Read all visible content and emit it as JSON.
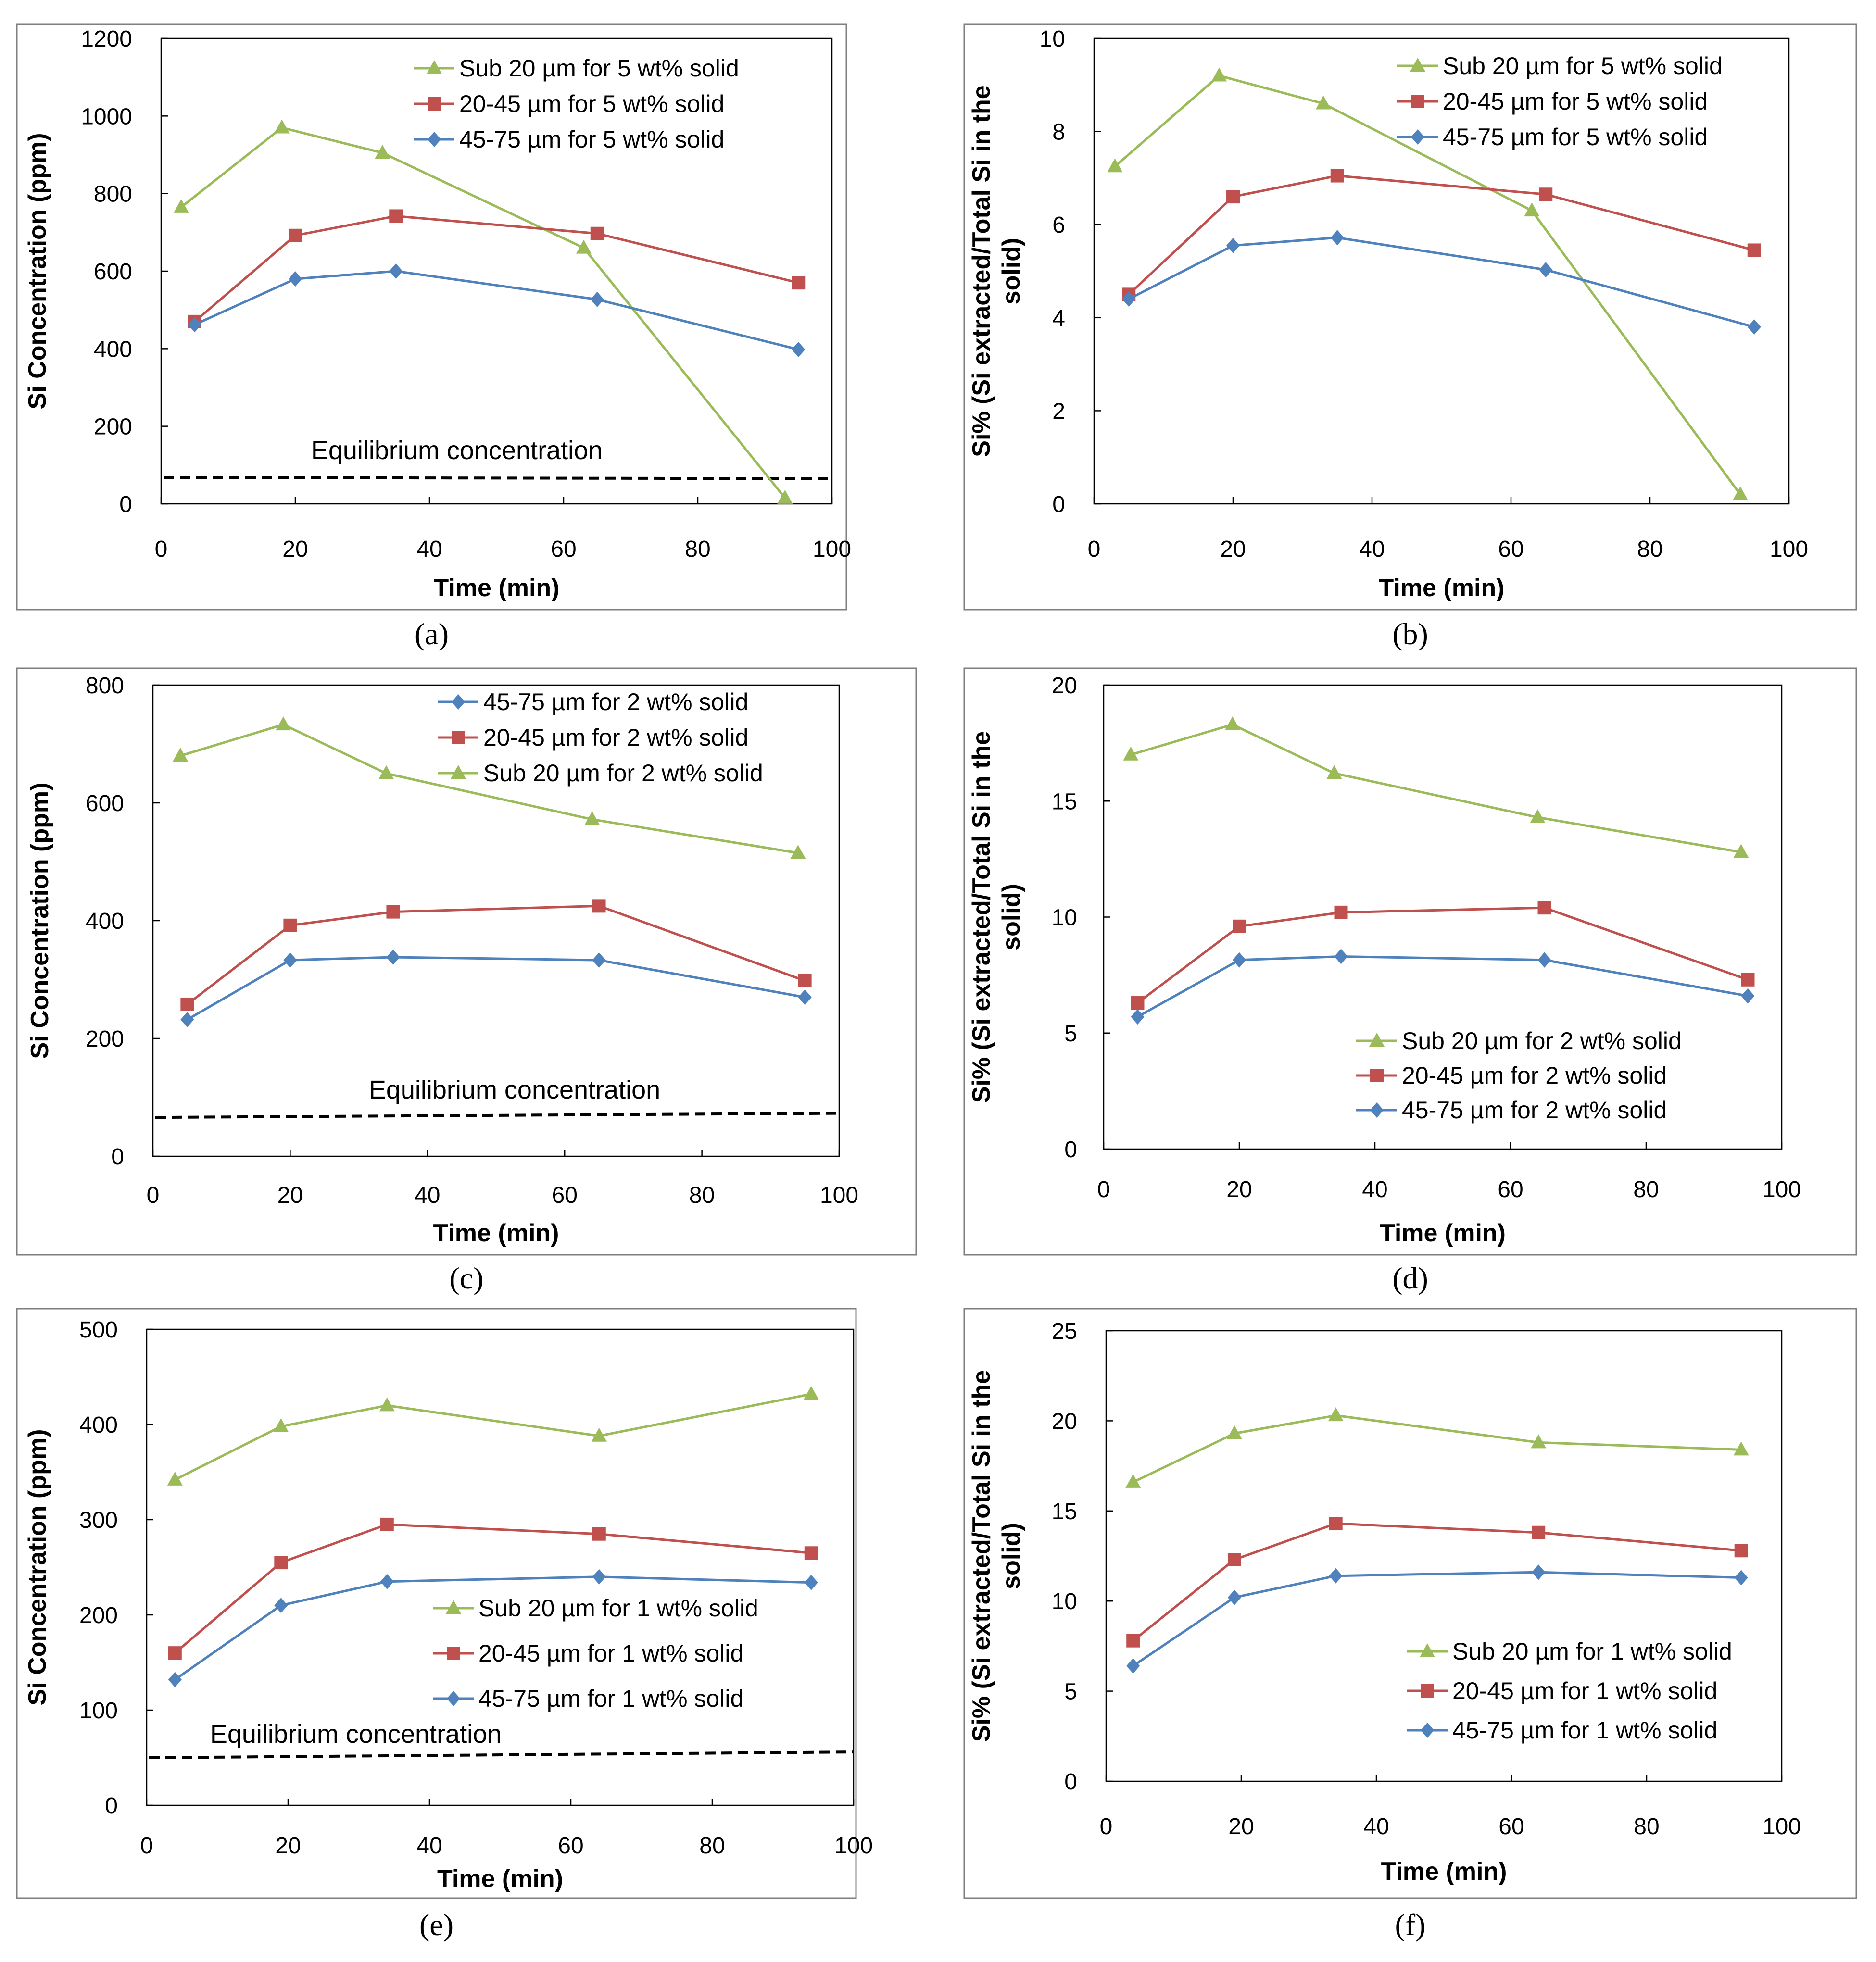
{
  "colors": {
    "green": "#9bbb59",
    "red": "#c0504d",
    "blue": "#4f81bd",
    "frame": "#7f7f7f",
    "equilibrium": "#000000"
  },
  "chart_data": [
    {
      "panel": "(a)",
      "type": "line",
      "xlabel": "Time (min)",
      "ylabel": "Si Concentration (ppm)",
      "xlim": [
        0,
        100
      ],
      "ylim": [
        0,
        1200
      ],
      "xticks": [
        0,
        20,
        40,
        60,
        80,
        100
      ],
      "yticks": [
        0,
        200,
        400,
        600,
        800,
        1000,
        1200
      ],
      "legend_position": "top-right",
      "series": [
        {
          "name": "Sub 20 µm for 5 wt% solid",
          "color": "green",
          "marker": "triangle",
          "x": [
            3,
            18,
            33,
            63,
            93
          ],
          "y": [
            765,
            970,
            905,
            660,
            15
          ]
        },
        {
          "name": "20-45 µm for 5 wt% solid",
          "color": "red",
          "marker": "square",
          "x": [
            5,
            20,
            35,
            65,
            95
          ],
          "y": [
            470,
            692,
            742,
            697,
            570
          ]
        },
        {
          "name": "45-75 µm for 5 wt% solid",
          "color": "blue",
          "marker": "diamond",
          "x": [
            5,
            20,
            35,
            65,
            95
          ],
          "y": [
            462,
            580,
            600,
            527,
            398
          ]
        }
      ],
      "annotation": {
        "text": "Equilibrium concentration",
        "y_start": 68,
        "y_end": 65
      }
    },
    {
      "panel": "(b)",
      "type": "line",
      "xlabel": "Time  (min)",
      "ylabel_lines": [
        "Si% (Si extracted/Total Si in the",
        "solid)"
      ],
      "xlim": [
        0,
        100
      ],
      "ylim": [
        0,
        10
      ],
      "xticks": [
        0,
        20,
        40,
        60,
        80,
        100
      ],
      "yticks": [
        0,
        2,
        4,
        6,
        8,
        10
      ],
      "legend_position": "top-right",
      "series": [
        {
          "name": "Sub 20 µm for 5 wt% solid",
          "color": "green",
          "marker": "triangle",
          "x": [
            3,
            18,
            33,
            63,
            93
          ],
          "y": [
            7.25,
            9.2,
            8.6,
            6.3,
            0.2
          ]
        },
        {
          "name": "20-45 µm for 5 wt% solid",
          "color": "red",
          "marker": "square",
          "x": [
            5,
            20,
            35,
            65,
            95
          ],
          "y": [
            4.5,
            6.6,
            7.05,
            6.65,
            5.45
          ]
        },
        {
          "name": "45-75 µm for 5 wt% solid",
          "color": "blue",
          "marker": "diamond",
          "x": [
            5,
            20,
            35,
            65,
            95
          ],
          "y": [
            4.4,
            5.55,
            5.72,
            5.03,
            3.8
          ]
        }
      ]
    },
    {
      "panel": "(c)",
      "type": "line",
      "xlabel": "Time (min)",
      "ylabel": "Si Concentration (ppm)",
      "xlim": [
        0,
        100
      ],
      "ylim": [
        0,
        800
      ],
      "xticks": [
        0,
        20,
        40,
        60,
        80,
        100
      ],
      "yticks": [
        0,
        200,
        400,
        600,
        800
      ],
      "legend_position": "top-right",
      "series": [
        {
          "name": "45-75 µm for 2 wt% solid",
          "color": "blue",
          "marker": "diamond",
          "x": [
            5,
            20,
            35,
            65,
            95
          ],
          "y": [
            232,
            333,
            338,
            333,
            270
          ]
        },
        {
          "name": "20-45 µm for 2 wt% solid",
          "color": "red",
          "marker": "square",
          "x": [
            5,
            20,
            35,
            65,
            95
          ],
          "y": [
            258,
            392,
            415,
            425,
            298
          ]
        },
        {
          "name": "Sub 20 µm for 2 wt% solid",
          "color": "green",
          "marker": "triangle",
          "x": [
            4,
            19,
            34,
            64,
            94
          ],
          "y": [
            680,
            733,
            650,
            572,
            515
          ]
        }
      ],
      "annotation": {
        "text": "Equilibrium concentration",
        "y_start": 66,
        "y_end": 73
      }
    },
    {
      "panel": "(d)",
      "type": "line",
      "xlabel": "Time (min)",
      "ylabel_lines": [
        "Si% (Si extracted/Total Si in the",
        "solid)"
      ],
      "xlim": [
        0,
        100
      ],
      "ylim": [
        0,
        20
      ],
      "xticks": [
        0,
        20,
        40,
        60,
        80,
        100
      ],
      "yticks": [
        0,
        5,
        10,
        15,
        20
      ],
      "legend_position": "bottom-right",
      "series": [
        {
          "name": "Sub 20 µm for 2 wt% solid",
          "color": "green",
          "marker": "triangle",
          "x": [
            4,
            19,
            34,
            64,
            94
          ],
          "y": [
            17,
            18.3,
            16.2,
            14.3,
            12.8
          ]
        },
        {
          "name": "20-45 µm for 2 wt% solid",
          "color": "red",
          "marker": "square",
          "x": [
            5,
            20,
            35,
            65,
            95
          ],
          "y": [
            6.3,
            9.6,
            10.2,
            10.4,
            7.3
          ]
        },
        {
          "name": "45-75 µm for 2 wt% solid",
          "color": "blue",
          "marker": "diamond",
          "x": [
            5,
            20,
            35,
            65,
            95
          ],
          "y": [
            5.7,
            8.15,
            8.3,
            8.15,
            6.6
          ]
        }
      ]
    },
    {
      "panel": "(e)",
      "type": "line",
      "xlabel": "Time (min)",
      "ylabel": "Si Concentration (ppm)",
      "xlim": [
        0,
        100
      ],
      "ylim": [
        0,
        500
      ],
      "xticks": [
        0,
        20,
        40,
        60,
        80,
        100
      ],
      "yticks": [
        0,
        100,
        200,
        300,
        400,
        500
      ],
      "legend_position": "bottom-right",
      "series": [
        {
          "name": "Sub 20 µm for 1 wt% solid",
          "color": "green",
          "marker": "triangle",
          "x": [
            4,
            19,
            34,
            64,
            94
          ],
          "y": [
            342,
            398,
            420,
            388,
            432
          ]
        },
        {
          "name": "20-45 µm for 1 wt% solid",
          "color": "red",
          "marker": "square",
          "x": [
            4,
            19,
            34,
            64,
            94
          ],
          "y": [
            160,
            255,
            295,
            285,
            265
          ]
        },
        {
          "name": "45-75 µm for 1 wt% solid",
          "color": "blue",
          "marker": "diamond",
          "x": [
            4,
            19,
            34,
            64,
            94
          ],
          "y": [
            132,
            210,
            235,
            240,
            234
          ]
        }
      ],
      "annotation": {
        "text": "Equilibrium concentration",
        "y_start": 50,
        "y_end": 56
      }
    },
    {
      "panel": "(f)",
      "type": "line",
      "xlabel": "Time (min)",
      "ylabel_lines": [
        "Si% (Si extracted/Total Si in the",
        "solid)"
      ],
      "xlim": [
        0,
        100
      ],
      "ylim": [
        0,
        25
      ],
      "xticks": [
        0,
        20,
        40,
        60,
        80,
        100
      ],
      "yticks": [
        0,
        5,
        10,
        15,
        20,
        25
      ],
      "legend_position": "bottom-right",
      "series": [
        {
          "name": "Sub 20 µm for 1 wt% solid",
          "color": "green",
          "marker": "triangle",
          "x": [
            4,
            19,
            34,
            64,
            94
          ],
          "y": [
            16.6,
            19.3,
            20.3,
            18.8,
            18.4
          ]
        },
        {
          "name": "20-45 µm for 1 wt% solid",
          "color": "red",
          "marker": "square",
          "x": [
            4,
            19,
            34,
            64,
            94
          ],
          "y": [
            7.8,
            12.3,
            14.3,
            13.8,
            12.8
          ]
        },
        {
          "name": "45-75 µm for 1 wt% solid",
          "color": "blue",
          "marker": "diamond",
          "x": [
            4,
            19,
            34,
            64,
            94
          ],
          "y": [
            6.4,
            10.2,
            11.4,
            11.6,
            11.3
          ]
        }
      ]
    }
  ]
}
